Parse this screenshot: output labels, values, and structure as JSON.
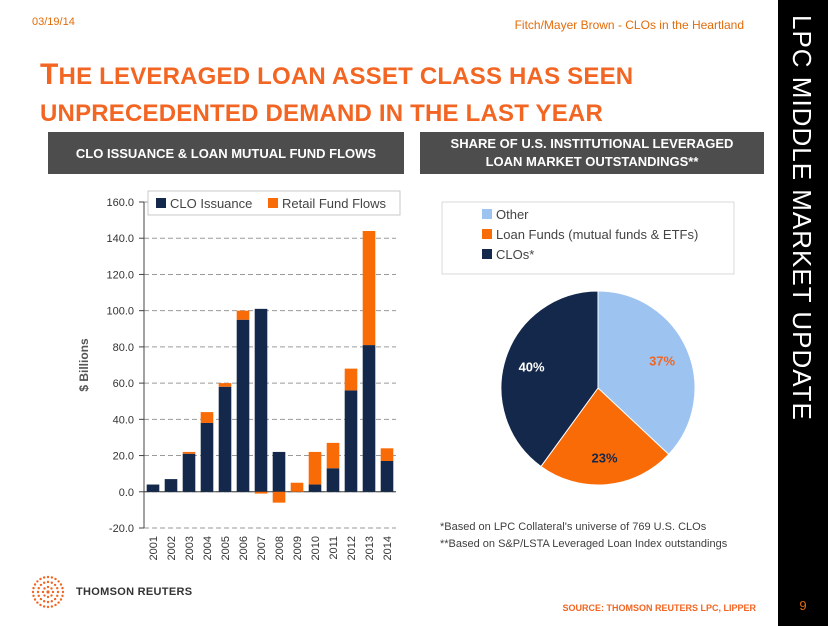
{
  "header": {
    "date": "03/19/14",
    "event": "Fitch/Mayer Brown - CLOs in the Heartland",
    "title_line1": "The leveraged loan asset class has seen",
    "title_line2": "unprecedented demand in the last year"
  },
  "sidebar": {
    "text": "LPC MIDDLE MARKET UPDATE",
    "page_number": "9"
  },
  "panels": {
    "left_title": "CLO ISSUANCE & LOAN MUTUAL FUND FLOWS",
    "right_title": "SHARE OF U.S. INSTITUTIONAL LEVERAGED LOAN MARKET OUTSTANDINGS**"
  },
  "footnotes": {
    "note1": "*Based on LPC Collateral's universe of 769 U.S. CLOs",
    "note2": "**Based on S&P/LSTA Leveraged Loan Index outstandings"
  },
  "source": "SOURCE: THOMSON REUTERS LPC, LIPPER",
  "logo_text": "THOMSON REUTERS",
  "colors": {
    "accent": "#f26522",
    "navy": "#14284b",
    "orange": "#f96b07",
    "light_blue": "#9dc3f0"
  },
  "chart_data": [
    {
      "type": "bar",
      "stacked": true,
      "ylabel": "$ Billions",
      "ylim": [
        -20,
        160
      ],
      "yticks": [
        "-20.0",
        "0.0",
        "20.0",
        "40.0",
        "60.0",
        "80.0",
        "100.0",
        "120.0",
        "140.0",
        "160.0"
      ],
      "grid": true,
      "legend_position": "top",
      "categories": [
        "2001",
        "2002",
        "2003",
        "2004",
        "2005",
        "2006",
        "2007",
        "2008",
        "2009",
        "2010",
        "2011",
        "2012",
        "2013",
        "2014"
      ],
      "series": [
        {
          "name": "CLO Issuance",
          "color": "#14284b",
          "values": [
            4,
            7,
            21,
            38,
            58,
            95,
            101,
            22,
            0,
            4,
            13,
            56,
            81,
            17
          ]
        },
        {
          "name": "Retail Fund Flows",
          "color": "#f96b07",
          "values": [
            0,
            0,
            1,
            6,
            2,
            5,
            -1,
            -6,
            5,
            18,
            14,
            12,
            63,
            7
          ]
        }
      ]
    },
    {
      "type": "pie",
      "legend_position": "top",
      "slices": [
        {
          "name": "Other",
          "value": 37,
          "label": "37%",
          "color": "#9dc3f0"
        },
        {
          "name": "Loan Funds (mutual funds & ETFs)",
          "value": 23,
          "label": "23%",
          "color": "#f96b07"
        },
        {
          "name": "CLOs*",
          "value": 40,
          "label": "40%",
          "color": "#14284b"
        }
      ]
    }
  ]
}
